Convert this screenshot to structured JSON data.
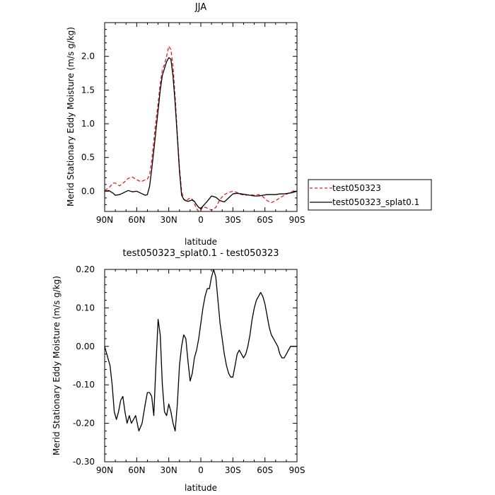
{
  "chart_data": [
    {
      "type": "line",
      "title": "JJA",
      "xlabel": "latitude",
      "ylabel": "Merid Stationary Eddy Moisture (m/s g/kg)",
      "xlim": [
        90,
        -90
      ],
      "ylim": [
        -0.3,
        2.5
      ],
      "x_ticks": [
        90,
        60,
        30,
        0,
        -30,
        -60,
        -90
      ],
      "x_tick_labels": [
        "90N",
        "60N",
        "30N",
        "0",
        "30S",
        "60S",
        "90S"
      ],
      "y_ticks": [
        0,
        0.5,
        1,
        1.5,
        2
      ],
      "y_tick_labels": [
        "0.0",
        "0.5",
        "1.0",
        "1.5",
        "2.0"
      ],
      "legend_position": "right",
      "series": [
        {
          "name": "test050323",
          "color": "#e8201e",
          "dash": true,
          "x": [
            90,
            86,
            82,
            80,
            76,
            72,
            68,
            64,
            60,
            56,
            52,
            50,
            48,
            46,
            44,
            42,
            40,
            38,
            36,
            34,
            32,
            30,
            28,
            26,
            24,
            22,
            20,
            18,
            16,
            14,
            12,
            10,
            8,
            6,
            4,
            2,
            0,
            -2,
            -6,
            -10,
            -14,
            -18,
            -22,
            -26,
            -30,
            -34,
            -38,
            -42,
            -46,
            -50,
            -54,
            -58,
            -62,
            -66,
            -70,
            -74,
            -78,
            -82,
            -86,
            -90
          ],
          "y": [
            0.01,
            0.05,
            0.12,
            0.12,
            0.08,
            0.13,
            0.19,
            0.21,
            0.17,
            0.14,
            0.17,
            0.18,
            0.24,
            0.45,
            0.75,
            1.05,
            1.3,
            1.6,
            1.8,
            1.88,
            2.0,
            2.15,
            2.1,
            1.85,
            1.4,
            0.85,
            0.35,
            0.0,
            -0.12,
            -0.15,
            -0.12,
            -0.1,
            -0.12,
            -0.18,
            -0.26,
            -0.3,
            -0.28,
            -0.23,
            -0.25,
            -0.28,
            -0.24,
            -0.12,
            -0.05,
            -0.02,
            0.0,
            -0.02,
            -0.05,
            -0.06,
            -0.05,
            -0.06,
            -0.05,
            -0.08,
            -0.14,
            -0.17,
            -0.14,
            -0.1,
            -0.06,
            -0.03,
            0.0,
            0.01
          ]
        },
        {
          "name": "test050323_splat0.1",
          "color": "#000000",
          "dash": false,
          "x": [
            90,
            86,
            82,
            80,
            76,
            72,
            68,
            64,
            60,
            56,
            52,
            50,
            48,
            46,
            44,
            42,
            40,
            38,
            36,
            34,
            32,
            30,
            28,
            26,
            24,
            22,
            20,
            18,
            16,
            14,
            12,
            10,
            8,
            6,
            4,
            2,
            0,
            -2,
            -6,
            -10,
            -14,
            -18,
            -22,
            -26,
            -30,
            -34,
            -38,
            -42,
            -46,
            -50,
            -54,
            -58,
            -62,
            -66,
            -70,
            -74,
            -78,
            -82,
            -86,
            -90
          ],
          "y": [
            0.0,
            0.01,
            -0.03,
            -0.06,
            -0.05,
            -0.02,
            0.01,
            -0.01,
            0.0,
            -0.03,
            -0.06,
            -0.05,
            0.07,
            0.32,
            0.6,
            0.9,
            1.2,
            1.5,
            1.72,
            1.82,
            1.92,
            1.98,
            1.96,
            1.7,
            1.3,
            0.8,
            0.3,
            -0.06,
            -0.12,
            -0.14,
            -0.15,
            -0.14,
            -0.13,
            -0.15,
            -0.2,
            -0.24,
            -0.26,
            -0.22,
            -0.15,
            -0.07,
            -0.09,
            -0.14,
            -0.16,
            -0.1,
            -0.04,
            -0.03,
            -0.04,
            -0.05,
            -0.06,
            -0.07,
            -0.07,
            -0.06,
            -0.05,
            -0.05,
            -0.05,
            -0.04,
            -0.04,
            -0.03,
            -0.02,
            0.0
          ]
        }
      ]
    },
    {
      "type": "line",
      "title": "test050323_splat0.1 - test050323",
      "xlabel": "latitude",
      "ylabel": "Merid Stationary Eddy Moisture (m/s g/kg)",
      "xlim": [
        90,
        -90
      ],
      "ylim": [
        -0.3,
        0.2
      ],
      "x_ticks": [
        90,
        60,
        30,
        0,
        -30,
        -60,
        -90
      ],
      "x_tick_labels": [
        "90N",
        "60N",
        "30N",
        "0",
        "30S",
        "60S",
        "90S"
      ],
      "y_ticks": [
        -0.3,
        -0.2,
        -0.1,
        0,
        0.1,
        0.2
      ],
      "y_tick_labels": [
        "-0.30",
        "-0.20",
        "-0.10",
        "0.00",
        "0.10",
        "0.20"
      ],
      "series": [
        {
          "name": "",
          "color": "#000000",
          "dash": false,
          "x": [
            90,
            87,
            85,
            83,
            81,
            79,
            77,
            75,
            73,
            71,
            69,
            67,
            65,
            63,
            61,
            58,
            55,
            52,
            50,
            48,
            46,
            44,
            42,
            40,
            38,
            36,
            34,
            32,
            30,
            28,
            26,
            24,
            22,
            20,
            18,
            16,
            14,
            12,
            10,
            8,
            6,
            4,
            2,
            0,
            -2,
            -4,
            -6,
            -8,
            -10,
            -12,
            -14,
            -16,
            -18,
            -20,
            -22,
            -24,
            -26,
            -28,
            -30,
            -32,
            -34,
            -36,
            -38,
            -40,
            -42,
            -44,
            -46,
            -48,
            -50,
            -52,
            -54,
            -56,
            -58,
            -60,
            -62,
            -64,
            -66,
            -68,
            -70,
            -72,
            -74,
            -76,
            -78,
            -80,
            -82,
            -84,
            -86,
            -88,
            -90
          ],
          "y": [
            0.0,
            -0.03,
            -0.05,
            -0.1,
            -0.17,
            -0.19,
            -0.17,
            -0.14,
            -0.13,
            -0.17,
            -0.2,
            -0.18,
            -0.2,
            -0.19,
            -0.18,
            -0.22,
            -0.2,
            -0.15,
            -0.12,
            -0.12,
            -0.13,
            -0.18,
            -0.05,
            0.07,
            0.03,
            -0.1,
            -0.17,
            -0.18,
            -0.15,
            -0.17,
            -0.2,
            -0.22,
            -0.15,
            -0.05,
            0.0,
            0.03,
            0.02,
            -0.04,
            -0.09,
            -0.07,
            -0.03,
            -0.01,
            0.02,
            0.06,
            0.1,
            0.13,
            0.15,
            0.15,
            0.18,
            0.2,
            0.18,
            0.12,
            0.06,
            0.02,
            -0.02,
            -0.05,
            -0.07,
            -0.08,
            -0.08,
            -0.05,
            -0.02,
            -0.01,
            -0.02,
            -0.03,
            -0.02,
            0.0,
            0.03,
            0.07,
            0.1,
            0.12,
            0.13,
            0.14,
            0.13,
            0.11,
            0.08,
            0.05,
            0.03,
            0.02,
            0.01,
            0.0,
            -0.02,
            -0.03,
            -0.03,
            -0.02,
            -0.01,
            0.0,
            0.0,
            0.0,
            0.0
          ]
        }
      ]
    }
  ]
}
